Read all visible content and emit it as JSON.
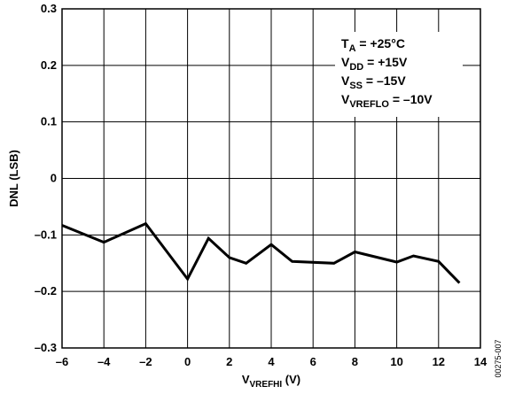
{
  "chart_data": {
    "type": "line",
    "ylabel": "DNL (LSB)",
    "xlabel": {
      "main": "V",
      "sub": "VREFHI",
      "unit": " (V)"
    },
    "xlim": [
      -6,
      14
    ],
    "ylim": [
      -0.3,
      0.3
    ],
    "x_ticks": [
      -6,
      -4,
      -2,
      0,
      2,
      4,
      6,
      8,
      10,
      12,
      14
    ],
    "x_tick_labels": [
      "–6",
      "–4",
      "–2",
      "0",
      "2",
      "4",
      "6",
      "8",
      "10",
      "12",
      "14"
    ],
    "y_ticks": [
      0.3,
      0.2,
      0.1,
      0,
      -0.1,
      -0.2,
      -0.3
    ],
    "y_tick_labels": [
      "0.3",
      "0.2",
      "0.1",
      "0",
      "–0.1",
      "–0.2",
      "–0.3"
    ],
    "grid": true,
    "series": [
      {
        "x": [
          -6,
          -4,
          -2,
          0,
          1,
          2,
          2.8,
          4,
          5,
          7,
          8,
          10,
          10.8,
          12,
          13
        ],
        "y": [
          -0.083,
          -0.113,
          -0.08,
          -0.178,
          -0.106,
          -0.14,
          -0.15,
          -0.117,
          -0.147,
          -0.15,
          -0.13,
          -0.148,
          -0.137,
          -0.147,
          -0.185
        ]
      }
    ],
    "conditions": [
      {
        "main": "T",
        "sub": "A",
        "rest": " = +25°C"
      },
      {
        "main": "V",
        "sub": "DD",
        "rest": " = +15V"
      },
      {
        "main": "V",
        "sub": "SS",
        "rest": " = –15V"
      },
      {
        "main": "V",
        "sub": "VREFLO",
        "rest": " = –10V"
      }
    ],
    "figure_id": "00275-007"
  }
}
